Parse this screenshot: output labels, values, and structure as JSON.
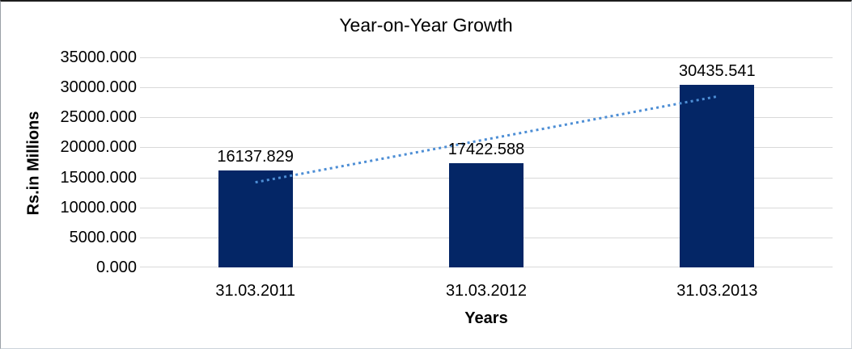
{
  "chart_data": {
    "type": "bar",
    "title": "Year-on-Year Growth",
    "xlabel": "Years",
    "ylabel": "Rs.in Millions",
    "categories": [
      "31.03.2011",
      "31.03.2012",
      "31.03.2013"
    ],
    "values": [
      16137.829,
      17422.588,
      30435.541
    ],
    "data_labels": [
      "16137.829",
      "17422.588",
      "30435.541"
    ],
    "ylim": [
      0,
      35000
    ],
    "ytick_step": 5000,
    "ytick_labels": [
      "0.000",
      "5000.000",
      "10000.000",
      "15000.000",
      "20000.000",
      "25000.000",
      "30000.000",
      "35000.000"
    ],
    "grid": true,
    "legend": "none",
    "bar_color": "#042666",
    "gridline_color": "#d9d9d9",
    "text_color": "#000000",
    "trendline": {
      "type": "linear",
      "style": "dotted",
      "color": "#4d8ed5"
    }
  }
}
